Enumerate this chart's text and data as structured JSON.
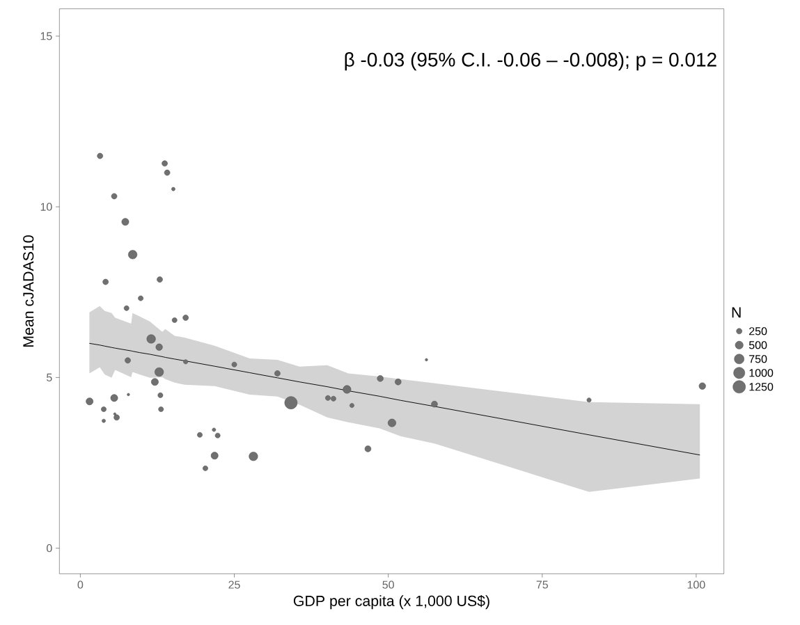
{
  "chart_data": {
    "type": "scatter",
    "xlabel": "GDP per capita (x 1,000 US$)",
    "ylabel": "Mean cJADAS10",
    "annotations": [
      "β -0.03 (95% C.I. -0.06 – -0.008); p = 0.012"
    ],
    "legend_title": "N",
    "size_legend": [
      250,
      500,
      750,
      1000,
      1250
    ],
    "xlim": [
      -3.4,
      104.5
    ],
    "ylim": [
      -0.75,
      15.8
    ],
    "xticks": [
      0,
      25,
      50,
      75,
      100
    ],
    "yticks": [
      0,
      5,
      10,
      15
    ],
    "grid": false,
    "series": [
      {
        "type": "line",
        "color": "#000000",
        "x": [
          1.47,
          3.16,
          3.95,
          5.08,
          5.65,
          8.25,
          8.47,
          9.6,
          11.3,
          13.3,
          13.8,
          15.3,
          16.9,
          21.8,
          27.5,
          32.0,
          35.6,
          40.1,
          43.5,
          48.6,
          52.0,
          57.6,
          82.6,
          100.6
        ],
        "values": [
          6.0,
          5.95,
          5.92,
          5.88,
          5.86,
          5.78,
          5.77,
          5.73,
          5.68,
          5.61,
          5.59,
          5.54,
          5.49,
          5.33,
          5.14,
          4.99,
          4.87,
          4.73,
          4.61,
          4.45,
          4.33,
          4.15,
          3.32,
          2.73
        ],
        "upper": [
          6.91,
          7.09,
          6.95,
          6.89,
          6.75,
          6.58,
          6.89,
          6.79,
          6.64,
          6.34,
          6.42,
          6.22,
          6.17,
          5.93,
          5.56,
          5.52,
          5.32,
          5.36,
          5.12,
          5.03,
          4.95,
          4.83,
          4.28,
          4.22
        ],
        "lower": [
          5.12,
          5.3,
          5.09,
          4.99,
          5.22,
          5.01,
          5.16,
          5.09,
          4.99,
          5.01,
          4.95,
          4.85,
          4.79,
          4.75,
          4.5,
          4.44,
          4.2,
          3.83,
          3.69,
          3.51,
          3.28,
          3.06,
          1.65,
          2.04
        ]
      },
      {
        "type": "scatter",
        "color": "#707070",
        "marker": "circle",
        "x": [
          3.2,
          13.7,
          14.1,
          15.1,
          5.5,
          7.3,
          8.5,
          4.1,
          12.9,
          9.8,
          7.5,
          17.1,
          15.3,
          11.5,
          12.8,
          7.7,
          17.1,
          12.8,
          12.1,
          7.8,
          13.0,
          1.5,
          5.5,
          3.8,
          13.1,
          5.6,
          5.9,
          3.8,
          19.4,
          21.7,
          22.3,
          21.8,
          20.3,
          28.1,
          25.0,
          32.0,
          34.2,
          40.2,
          41.1,
          43.3,
          44.1,
          48.7,
          51.6,
          50.6,
          46.7,
          56.2,
          57.5,
          82.6,
          101.0
        ],
        "values": [
          11.49,
          11.27,
          11.0,
          10.52,
          10.31,
          9.56,
          8.6,
          7.8,
          7.87,
          7.32,
          7.03,
          6.75,
          6.68,
          6.13,
          5.89,
          5.5,
          5.46,
          5.16,
          4.87,
          4.5,
          4.48,
          4.3,
          4.4,
          4.07,
          4.07,
          3.93,
          3.83,
          3.73,
          3.32,
          3.47,
          3.3,
          2.71,
          2.34,
          2.69,
          5.38,
          5.12,
          4.26,
          4.4,
          4.38,
          4.65,
          4.18,
          4.97,
          4.87,
          3.67,
          2.91,
          5.52,
          4.22,
          4.34,
          4.75
        ],
        "sizes": [
          250,
          250,
          250,
          100,
          250,
          400,
          600,
          250,
          250,
          200,
          200,
          250,
          200,
          600,
          350,
          250,
          150,
          600,
          400,
          50,
          200,
          400,
          400,
          200,
          200,
          50,
          250,
          100,
          200,
          100,
          200,
          400,
          200,
          600,
          200,
          250,
          1250,
          200,
          200,
          500,
          150,
          300,
          300,
          500,
          300,
          50,
          300,
          150,
          350
        ]
      }
    ]
  }
}
